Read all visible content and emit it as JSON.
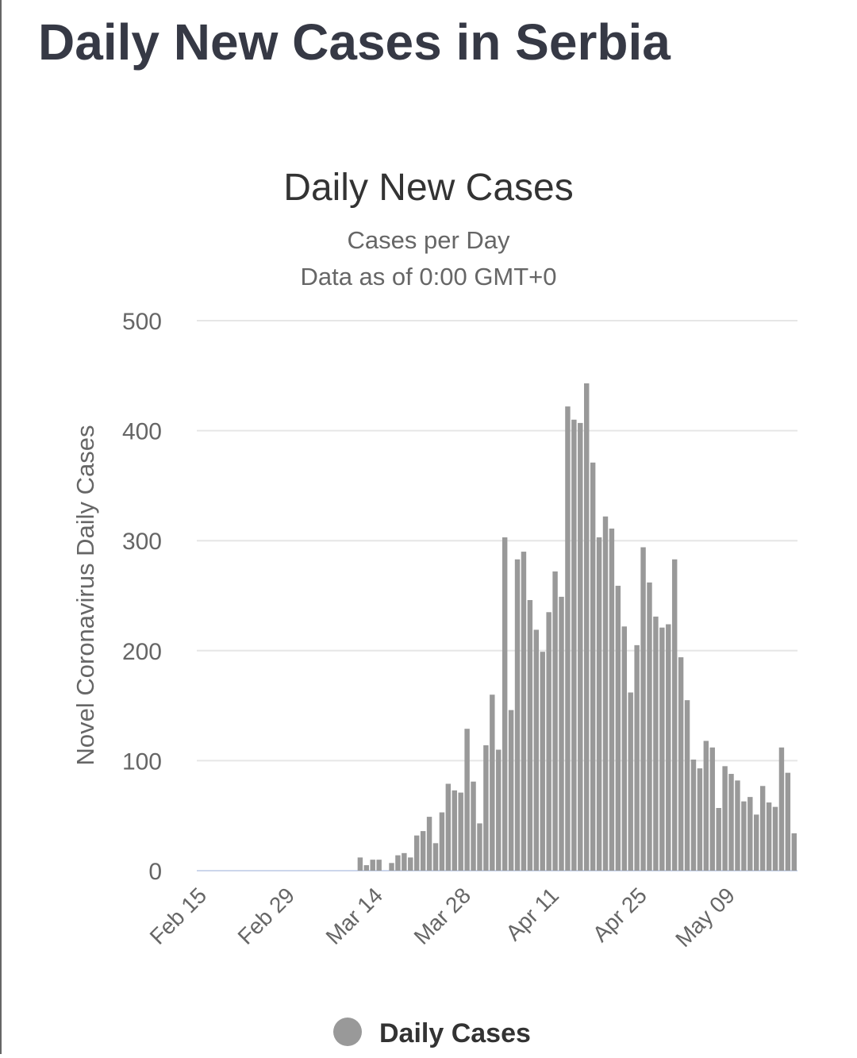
{
  "heading": "Daily New Cases in Serbia",
  "chart_data": {
    "type": "bar",
    "title": "Daily New Cases",
    "subtitle": [
      "Cases per Day",
      "Data as of 0:00 GMT+0"
    ],
    "y_label": "Novel Coronavirus Daily Cases",
    "legend": "Daily Cases",
    "color": "#999999",
    "ylim": [
      0,
      500
    ],
    "yticks": [
      0,
      100,
      200,
      300,
      400,
      500
    ],
    "grid": true,
    "categories": [
      "Feb 15",
      null,
      null,
      null,
      null,
      null,
      null,
      null,
      null,
      null,
      null,
      null,
      null,
      null,
      "Feb 29",
      null,
      null,
      null,
      null,
      null,
      null,
      null,
      null,
      null,
      null,
      null,
      null,
      null,
      "Mar 14",
      null,
      null,
      null,
      null,
      null,
      null,
      null,
      null,
      null,
      null,
      null,
      null,
      null,
      "Mar 28",
      null,
      null,
      null,
      null,
      null,
      null,
      null,
      null,
      null,
      null,
      null,
      null,
      null,
      "Apr 11",
      null,
      null,
      null,
      null,
      null,
      null,
      null,
      null,
      null,
      null,
      null,
      null,
      null,
      "Apr 25",
      null,
      null,
      null,
      null,
      null,
      null,
      null,
      null,
      null,
      null,
      null,
      null,
      null,
      "May 09",
      null,
      null,
      null,
      null,
      null,
      null,
      null,
      null,
      null,
      null
    ],
    "values": [
      0,
      0,
      0,
      0,
      0,
      0,
      0,
      0,
      0,
      0,
      0,
      0,
      0,
      0,
      0,
      0,
      0,
      0,
      0,
      0,
      0,
      0,
      0,
      0,
      0,
      12,
      5,
      10,
      10,
      0,
      7,
      14,
      16,
      12,
      32,
      36,
      49,
      25,
      53,
      79,
      73,
      71,
      129,
      81,
      43,
      114,
      160,
      110,
      303,
      146,
      283,
      290,
      246,
      219,
      199,
      235,
      272,
      249,
      422,
      410,
      407,
      443,
      371,
      303,
      322,
      311,
      259,
      222,
      162,
      205,
      294,
      262,
      231,
      221,
      224,
      283,
      194,
      155,
      101,
      93,
      118,
      112,
      57,
      95,
      88,
      82,
      63,
      67,
      51,
      77,
      62,
      58,
      112,
      89,
      34
    ]
  }
}
